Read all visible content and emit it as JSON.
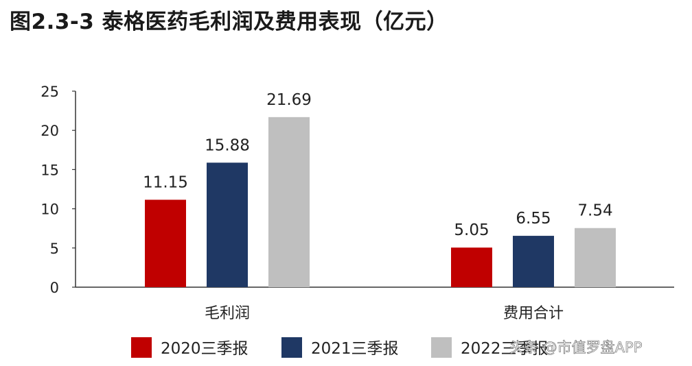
{
  "title": "图2.3-3 泰格医药毛利润及费用表现（亿元）",
  "watermark": "头条 @市值罗盘APP",
  "chart_data": {
    "type": "bar",
    "title": "图2.3-3 泰格医药毛利润及费用表现（亿元）",
    "categories": [
      "毛利润",
      "费用合计"
    ],
    "series": [
      {
        "name": "2020三季报",
        "values": [
          11.15,
          5.05
        ],
        "color": "#c00000"
      },
      {
        "name": "2021三季报",
        "values": [
          15.88,
          6.55
        ],
        "color": "#1f3864"
      },
      {
        "name": "2022三季报",
        "values": [
          21.69,
          7.54
        ],
        "color": "#bfbfbf"
      }
    ],
    "data_labels": [
      [
        "11.15",
        "5.05"
      ],
      [
        "15.88",
        "6.55"
      ],
      [
        "21.69",
        "7.54"
      ]
    ],
    "ylim": [
      0,
      25
    ],
    "yticks": [
      "0",
      "5",
      "10",
      "15",
      "20",
      "25"
    ],
    "xlabel": "",
    "ylabel": "",
    "grid": false,
    "legend_position": "bottom"
  }
}
